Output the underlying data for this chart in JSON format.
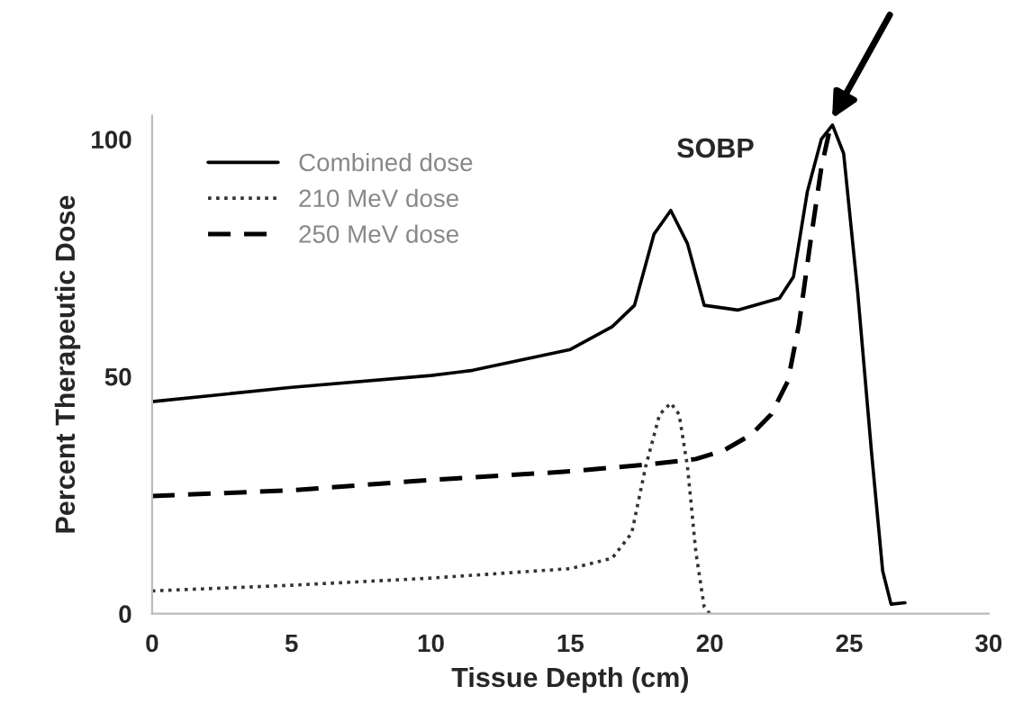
{
  "chart_data": {
    "type": "line",
    "xlabel": "Tissue Depth (cm)",
    "ylabel": "Percent Therapeutic Dose",
    "xlim": [
      0,
      30
    ],
    "xticks": [
      0,
      5,
      10,
      15,
      20,
      25,
      30
    ],
    "ylim": [
      0,
      105
    ],
    "yticks": [
      0,
      50,
      100
    ],
    "grid": false,
    "legend": "top left",
    "marker": "none",
    "annotations": [
      "SOBP"
    ],
    "series": [
      {
        "name": "Combined dose",
        "color": "#000000",
        "line_style": "solid",
        "x": [
          0,
          5,
          10,
          11.5,
          15,
          16.5,
          17.3,
          18,
          18.6,
          19.2,
          19.8,
          21,
          22.5,
          23,
          23.5,
          24,
          24.4,
          24.8,
          25.3,
          25.8,
          26.2,
          26.5,
          27
        ],
        "values": [
          44.7,
          47.7,
          50.2,
          51.3,
          55.7,
          60.5,
          65,
          80,
          85,
          78,
          65,
          64,
          66.5,
          71,
          89,
          100,
          103,
          97,
          68,
          34,
          9,
          2,
          2.3
        ]
      },
      {
        "name": "210 MeV dose",
        "color": "#333333",
        "line_style": "dotted",
        "x": [
          0,
          5,
          10,
          15,
          16.5,
          17.2,
          17.7,
          18.2,
          18.6,
          18.9,
          19.2,
          19.5,
          19.8,
          20
        ],
        "values": [
          4.8,
          6,
          7.5,
          9.5,
          11.7,
          17,
          31,
          42,
          44.4,
          42,
          31,
          13,
          1.4,
          0
        ]
      },
      {
        "name": "250 MeV dose",
        "color": "#000000",
        "line_style": "dashed",
        "x": [
          0,
          5,
          10,
          15,
          18,
          19.5,
          20.5,
          21.5,
          22.2,
          22.8,
          23.2,
          23.6,
          24,
          24.3
        ],
        "values": [
          24.8,
          26,
          28.2,
          30,
          31.6,
          32.6,
          34.4,
          37.8,
          42,
          49,
          61,
          78,
          94,
          102
        ]
      }
    ]
  }
}
